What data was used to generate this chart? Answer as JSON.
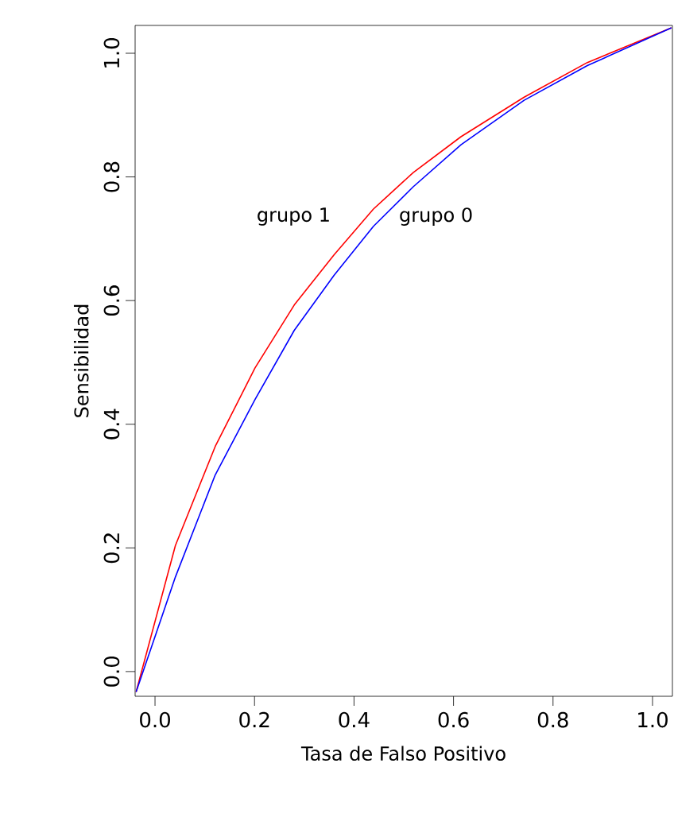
{
  "chart_data": {
    "type": "line",
    "xlabel": "Tasa de Falso Positivo",
    "ylabel": "Sensibilidad",
    "xlim": [
      -0.04,
      1.04
    ],
    "ylim": [
      -0.04,
      1.045
    ],
    "xticks": [
      {
        "value": 0,
        "label": "0.0"
      },
      0.2,
      0.4,
      0.6,
      0.8,
      {
        "value": 1,
        "label": "1.0"
      }
    ],
    "yticks": [
      {
        "value": 0,
        "label": "0.0"
      },
      0.2,
      0.4,
      0.6,
      0.8,
      {
        "value": 1,
        "label": "1.0"
      }
    ],
    "grid": false,
    "marker": "none",
    "line_style": "solid",
    "series": [
      {
        "color": "#ff0000",
        "x": [
          -0.038,
          0.041,
          0.121,
          0.201,
          0.28,
          0.36,
          0.439,
          0.519,
          0.615,
          0.742,
          0.869,
          1.038
        ],
        "values": [
          -0.033,
          0.204,
          0.364,
          0.491,
          0.593,
          0.674,
          0.748,
          0.807,
          0.865,
          0.929,
          0.985,
          1.041
        ]
      },
      {
        "color": "#0000ff",
        "x": [
          -0.038,
          0.041,
          0.121,
          0.201,
          0.28,
          0.36,
          0.439,
          0.519,
          0.615,
          0.742,
          0.869,
          1.038
        ],
        "values": [
          -0.033,
          0.153,
          0.318,
          0.44,
          0.552,
          0.641,
          0.72,
          0.784,
          0.852,
          0.924,
          0.98,
          1.041
        ]
      }
    ],
    "annotations": [
      "grupo 1",
      "grupo 0"
    ]
  }
}
